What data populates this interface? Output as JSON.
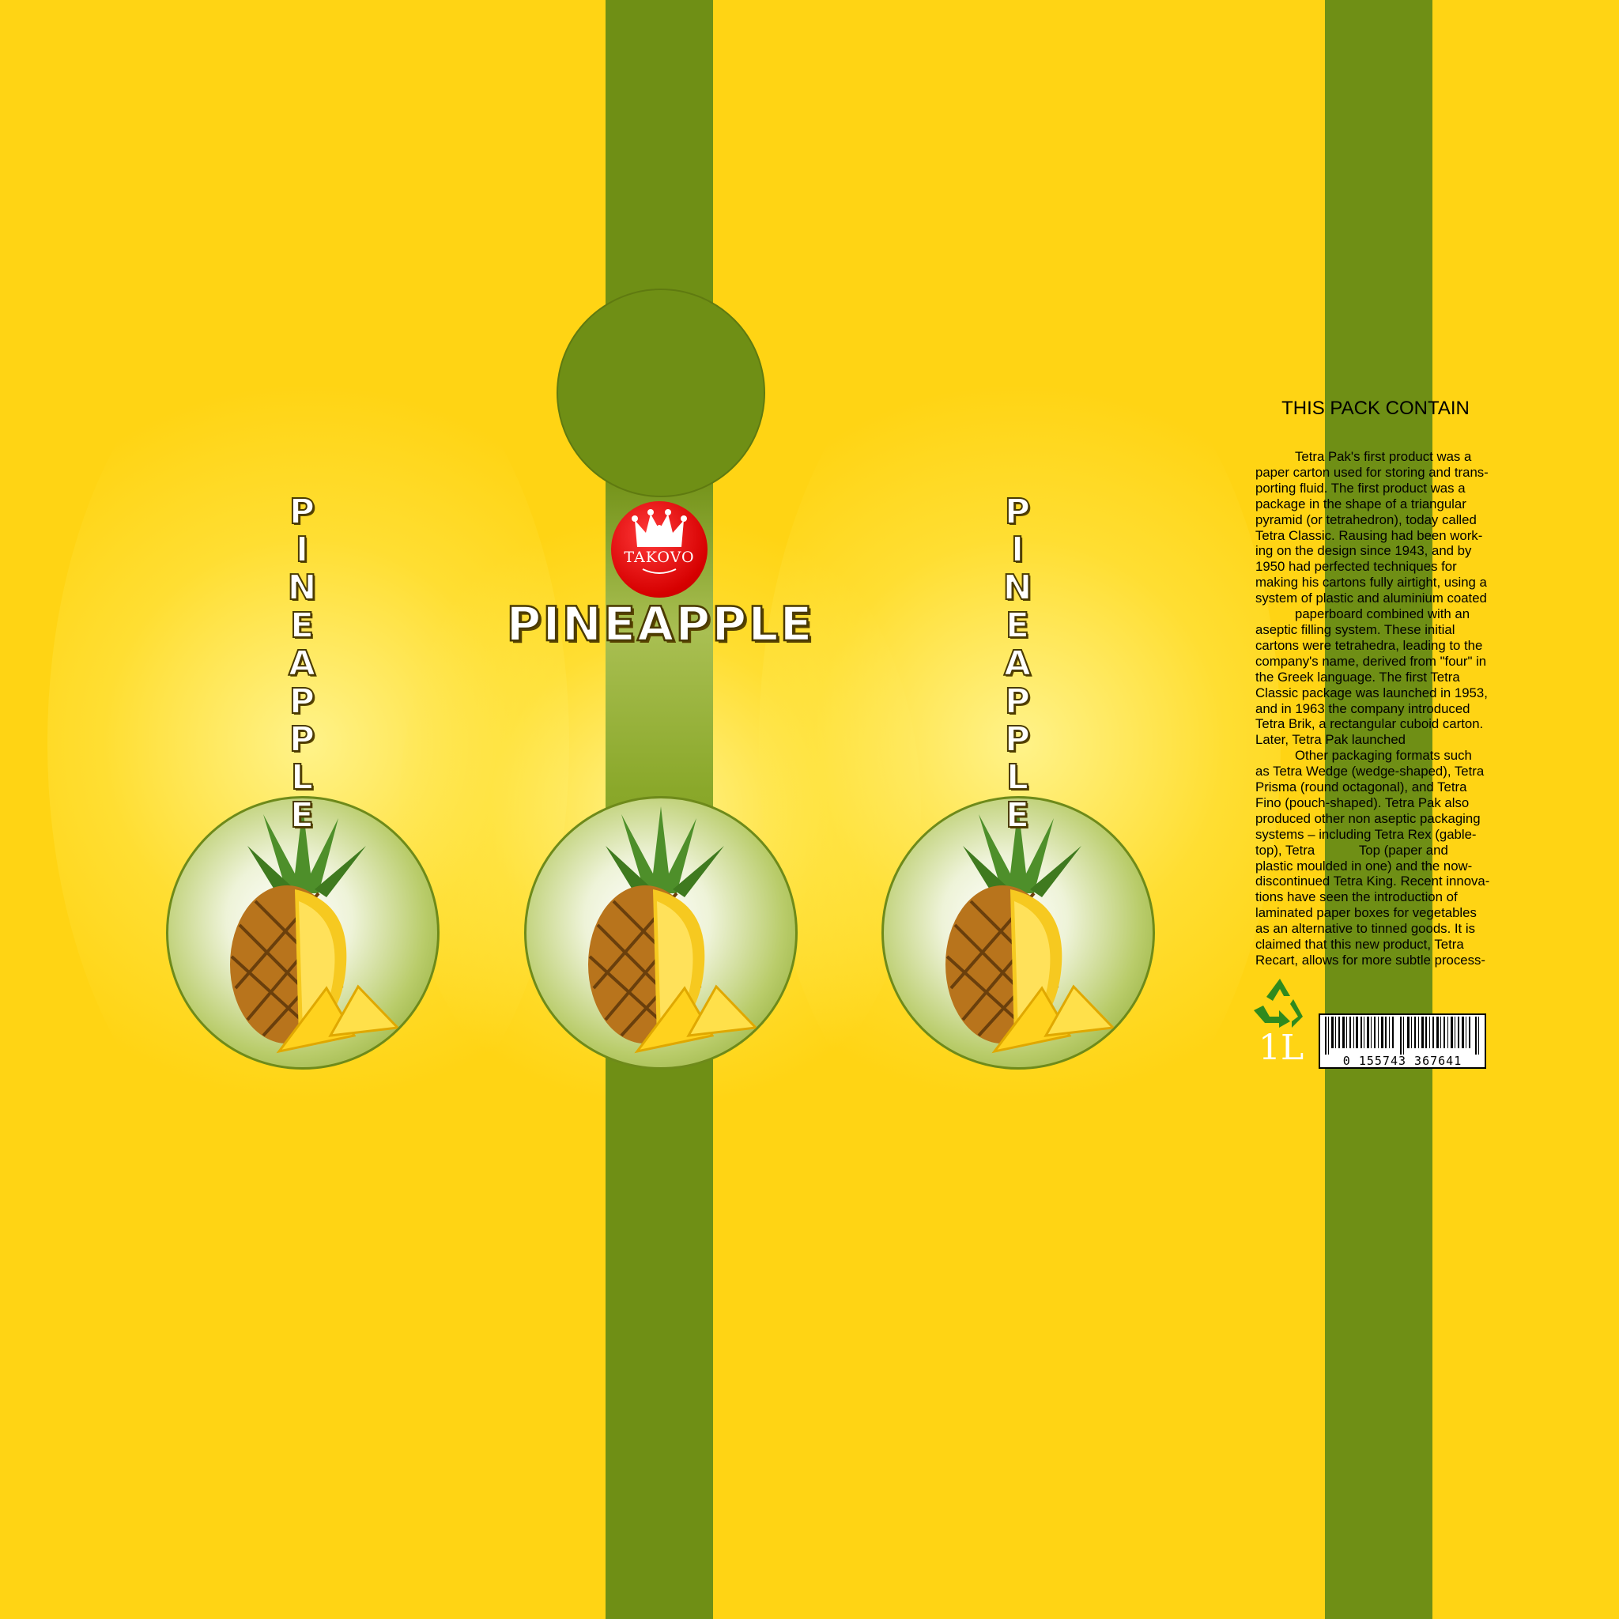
{
  "colors": {
    "background": "#ffd414",
    "green": "#6f8f15",
    "badge_red": "#d60000"
  },
  "brand": {
    "name": "TAKOVO",
    "icon": "crown-icon"
  },
  "product": {
    "title": "PINEAPPLE"
  },
  "side_panels": {
    "left_word": [
      "P",
      "I",
      "N",
      "E",
      "A",
      "P",
      "P",
      "L",
      "E"
    ],
    "right_word": [
      "P",
      "I",
      "N",
      "E",
      "A",
      "P",
      "P",
      "L",
      "E"
    ]
  },
  "info_panel": {
    "heading": "THIS PACK CONTAIN",
    "lines": [
      "Tetra Pak's first product was a",
      "paper carton used for storing and trans-",
      "porting fluid. The first product was a",
      "package in the shape of a triangular",
      "pyramid (or tetrahedron), today called",
      "Tetra Classic. Rausing had been work-",
      "ing on the design since 1943, and by",
      "1950 had perfected techniques for",
      "making his cartons fully airtight, using a",
      "system of plastic and aluminium coated",
      "paperboard combined with an",
      "aseptic filling system. These initial",
      "cartons were tetrahedra, leading to the",
      "company's name, derived from \"four\" in",
      "the Greek language. The first Tetra",
      "Classic package was launched in 1953,",
      "and in 1963 the company introduced",
      "Tetra Brik, a rectangular cuboid carton.",
      "Later, Tetra Pak launched",
      "Other packaging formats such",
      "as Tetra Wedge (wedge-shaped), Tetra",
      "Prisma (round octagonal), and Tetra",
      "Fino (pouch-shaped). Tetra Pak also",
      "produced other non aseptic packaging",
      "systems – including Tetra Rex (gable-",
      "top), Tetra            Top (paper and",
      "plastic moulded in one) and the now-",
      "discontinued Tetra King. Recent innova-",
      "tions have seen the introduction of",
      "laminated paper boxes for vegetables",
      "as an alternative to tinned goods. It is",
      "claimed that this new product, Tetra",
      "Recart, allows for more subtle process-"
    ],
    "volume": "1L",
    "barcode_number": "0 155743 367641",
    "recycle_icon": "recycle-icon"
  }
}
